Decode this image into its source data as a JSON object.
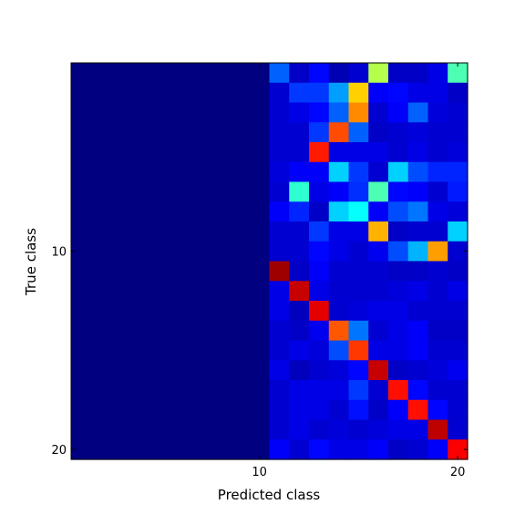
{
  "chart_data": {
    "type": "heatmap",
    "xlabel": "Predicted class",
    "ylabel": "True class",
    "x_ticks": [
      10,
      20
    ],
    "y_ticks": [
      10,
      20
    ],
    "n_rows": 20,
    "n_cols": 20,
    "colormap": "jet",
    "value_range": [
      0,
      1
    ],
    "grid": false,
    "cells": [
      [
        0,
        0,
        0,
        0,
        0,
        0,
        0,
        0,
        0,
        0,
        0.22,
        0.07,
        0.13,
        0.05,
        0.08,
        0.55,
        0.07,
        0.07,
        0.1,
        0.45
      ],
      [
        0,
        0,
        0,
        0,
        0,
        0,
        0,
        0,
        0,
        0,
        0.08,
        0.18,
        0.18,
        0.28,
        0.67,
        0.12,
        0.13,
        0.1,
        0.1,
        0.07
      ],
      [
        0,
        0,
        0,
        0,
        0,
        0,
        0,
        0,
        0,
        0,
        0.08,
        0.1,
        0.13,
        0.22,
        0.74,
        0.08,
        0.12,
        0.22,
        0.09,
        0.08
      ],
      [
        0,
        0,
        0,
        0,
        0,
        0,
        0,
        0,
        0,
        0,
        0.08,
        0.08,
        0.18,
        0.8,
        0.22,
        0.07,
        0.08,
        0.09,
        0.08,
        0.08
      ],
      [
        0,
        0,
        0,
        0,
        0,
        0,
        0,
        0,
        0,
        0,
        0.08,
        0.08,
        0.85,
        0.1,
        0.1,
        0.1,
        0.08,
        0.1,
        0.08,
        0.09
      ],
      [
        0,
        0,
        0,
        0,
        0,
        0,
        0,
        0,
        0,
        0,
        0.09,
        0.12,
        0.12,
        0.33,
        0.18,
        0.08,
        0.33,
        0.2,
        0.16,
        0.16
      ],
      [
        0,
        0,
        0,
        0,
        0,
        0,
        0,
        0,
        0,
        0,
        0.08,
        0.42,
        0.1,
        0.12,
        0.17,
        0.45,
        0.13,
        0.12,
        0.08,
        0.15
      ],
      [
        0,
        0,
        0,
        0,
        0,
        0,
        0,
        0,
        0,
        0,
        0.12,
        0.16,
        0.07,
        0.33,
        0.38,
        0.12,
        0.2,
        0.24,
        0.1,
        0.09
      ],
      [
        0,
        0,
        0,
        0,
        0,
        0,
        0,
        0,
        0,
        0,
        0.08,
        0.08,
        0.18,
        0.1,
        0.1,
        0.7,
        0.07,
        0.08,
        0.08,
        0.33
      ],
      [
        0,
        0,
        0,
        0,
        0,
        0,
        0,
        0,
        0,
        0,
        0.08,
        0.08,
        0.13,
        0.1,
        0.08,
        0.11,
        0.2,
        0.3,
        0.72,
        0.08
      ],
      [
        0,
        0,
        0,
        0,
        0,
        0,
        0,
        0,
        0,
        0,
        0.97,
        0.07,
        0.12,
        0.08,
        0.08,
        0.08,
        0.07,
        0.07,
        0.08,
        0.07
      ],
      [
        0,
        0,
        0,
        0,
        0,
        0,
        0,
        0,
        0,
        0,
        0.1,
        0.93,
        0.1,
        0.08,
        0.08,
        0.08,
        0.09,
        0.1,
        0.08,
        0.1
      ],
      [
        0,
        0,
        0,
        0,
        0,
        0,
        0,
        0,
        0,
        0,
        0.1,
        0.06,
        0.9,
        0.08,
        0.09,
        0.1,
        0.1,
        0.08,
        0.08,
        0.08
      ],
      [
        0,
        0,
        0,
        0,
        0,
        0,
        0,
        0,
        0,
        0,
        0.08,
        0.07,
        0.11,
        0.79,
        0.24,
        0.08,
        0.1,
        0.12,
        0.07,
        0.07
      ],
      [
        0,
        0,
        0,
        0,
        0,
        0,
        0,
        0,
        0,
        0,
        0.08,
        0.1,
        0.09,
        0.2,
        0.82,
        0.1,
        0.1,
        0.12,
        0.08,
        0.08
      ],
      [
        0,
        0,
        0,
        0,
        0,
        0,
        0,
        0,
        0,
        0,
        0.1,
        0.06,
        0.08,
        0.09,
        0.13,
        0.93,
        0.07,
        0.08,
        0.09,
        0.11
      ],
      [
        0,
        0,
        0,
        0,
        0,
        0,
        0,
        0,
        0,
        0,
        0.08,
        0.1,
        0.1,
        0.1,
        0.18,
        0.08,
        0.86,
        0.13,
        0.08,
        0.08
      ],
      [
        0,
        0,
        0,
        0,
        0,
        0,
        0,
        0,
        0,
        0,
        0.08,
        0.1,
        0.1,
        0.08,
        0.14,
        0.07,
        0.12,
        0.86,
        0.13,
        0.08
      ],
      [
        0,
        0,
        0,
        0,
        0,
        0,
        0,
        0,
        0,
        0,
        0.08,
        0.1,
        0.08,
        0.09,
        0.08,
        0.09,
        0.1,
        0.1,
        0.94,
        0.08
      ],
      [
        0,
        0,
        0,
        0,
        0,
        0,
        0,
        0,
        0,
        0,
        0.12,
        0.08,
        0.13,
        0.1,
        0.1,
        0.12,
        0.07,
        0.08,
        0.12,
        0.88
      ]
    ]
  }
}
